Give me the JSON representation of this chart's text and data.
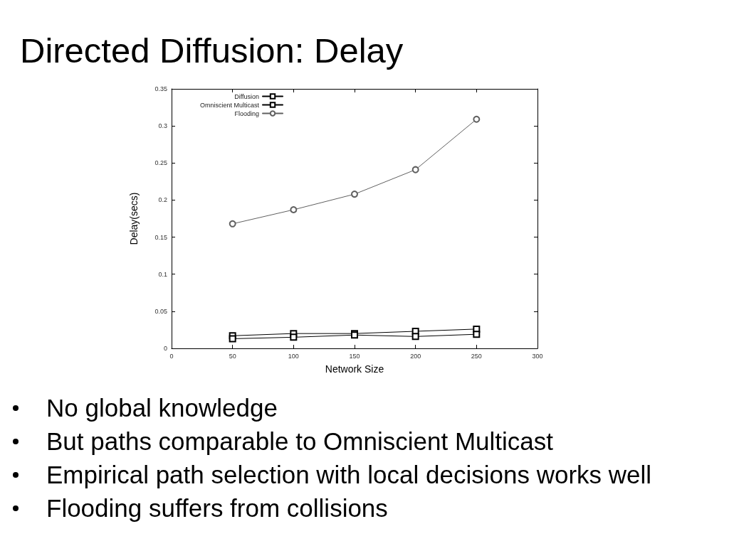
{
  "chart_data": {
    "type": "line",
    "title": "Directed Diffusion: Delay",
    "xlabel": "Network Size",
    "ylabel": "Delay(secs)",
    "x": [
      50,
      100,
      150,
      200,
      250
    ],
    "series": [
      {
        "name": "Diffusion",
        "color": "#000000",
        "marker": "square",
        "values": [
          0.017,
          0.02,
          0.02,
          0.023,
          0.026
        ]
      },
      {
        "name": "Omniscient Multicast",
        "color": "#000000",
        "marker": "square",
        "values": [
          0.013,
          0.015,
          0.018,
          0.016,
          0.019
        ]
      },
      {
        "name": "Flooding",
        "color": "#606060",
        "marker": "circle",
        "values": [
          0.168,
          0.187,
          0.208,
          0.241,
          0.309
        ]
      }
    ],
    "xlim": [
      0,
      300
    ],
    "xticks": [
      0,
      50,
      100,
      150,
      200,
      250,
      300
    ],
    "ylim": [
      0,
      0.35
    ],
    "yticks": [
      0,
      0.05,
      0.1,
      0.15,
      0.2,
      0.25,
      0.3,
      0.35
    ],
    "legend": "top left",
    "line_style": "solid",
    "annotations": [
      "No global knowledge",
      "But paths comparable to Omniscient Multicast",
      "Empirical path selection with local decisions works well",
      "Flooding suffers from collisions"
    ]
  }
}
